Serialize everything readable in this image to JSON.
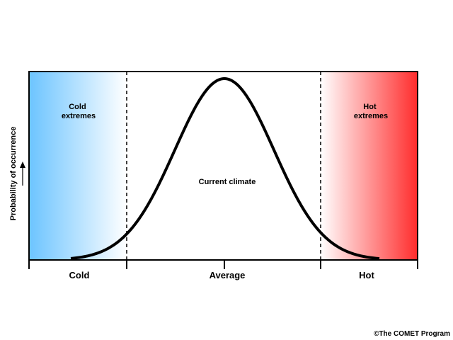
{
  "regions": {
    "cold_extremes": [
      "Cold",
      "extremes"
    ],
    "hot_extremes": [
      "Hot",
      "extremes"
    ],
    "current_climate": "Current climate"
  },
  "y_axis_label": "Probability of occurrence",
  "x_axis_labels": [
    "Cold",
    "Average",
    "Hot"
  ],
  "credit": "©The COMET Program"
}
